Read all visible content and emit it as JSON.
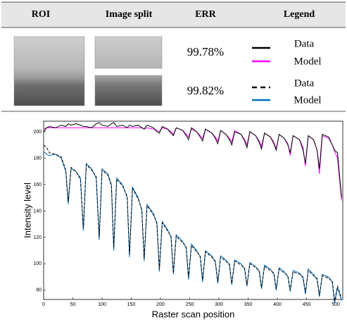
{
  "table": {
    "header": [
      "ROI",
      "Image split",
      "ERR",
      "Legend"
    ],
    "rows": [
      {
        "err": "99.78%",
        "legend": [
          {
            "label": "Data",
            "color": "#000000",
            "dash": false
          },
          {
            "label": "Model",
            "color": "#ff00ff",
            "dash": false
          }
        ]
      },
      {
        "err": "99.82%",
        "legend": [
          {
            "label": "Data",
            "color": "#000000",
            "dash": true
          },
          {
            "label": "Model",
            "color": "#0070c0",
            "dash": false
          }
        ]
      }
    ]
  },
  "chart_data": {
    "type": "line",
    "xlabel": "Raster scan position",
    "ylabel": "Intensity level",
    "xlim": [
      0,
      512
    ],
    "ylim": [
      73,
      208
    ],
    "xticks": [
      0,
      50,
      100,
      150,
      200,
      250,
      300,
      350,
      400,
      450,
      500
    ],
    "yticks": [
      80,
      100,
      120,
      140,
      160,
      180,
      200
    ],
    "x": [
      0,
      5,
      10,
      20,
      30,
      38,
      42,
      47,
      55,
      63,
      68,
      73,
      82,
      90,
      95,
      100,
      110,
      116,
      120,
      125,
      135,
      143,
      147,
      152,
      162,
      168,
      172,
      177,
      188,
      194,
      198,
      203,
      212,
      218,
      222,
      227,
      238,
      244,
      248,
      253,
      262,
      268,
      272,
      277,
      288,
      294,
      298,
      303,
      312,
      318,
      322,
      327,
      338,
      344,
      348,
      353,
      363,
      369,
      373,
      378,
      388,
      394,
      398,
      403,
      412,
      418,
      422,
      427,
      438,
      444,
      448,
      453,
      462,
      468,
      472,
      477,
      488,
      494,
      498,
      503,
      510
    ],
    "series": [
      {
        "color": "#000000",
        "dash": false,
        "values": [
          200,
          203,
          204,
          203,
          205,
          204,
          206,
          205,
          206,
          205,
          204,
          204,
          203,
          206,
          207,
          205,
          204,
          206,
          207,
          204,
          205,
          203,
          205,
          204,
          205,
          203,
          202,
          205,
          203,
          200,
          199,
          204,
          202,
          199,
          197,
          203,
          201,
          197,
          194,
          203,
          200,
          196,
          193,
          202,
          199,
          195,
          191,
          201,
          198,
          194,
          190,
          200,
          198,
          193,
          188,
          200,
          197,
          192,
          187,
          199,
          196,
          191,
          186,
          198,
          195,
          190,
          184,
          197,
          194,
          186,
          176,
          197,
          194,
          186,
          172,
          198,
          196,
          190,
          186,
          184,
          150
        ]
      },
      {
        "color": "#ff00ff",
        "dash": false,
        "values": [
          202,
          203,
          203,
          203,
          203,
          203,
          203,
          203,
          203,
          203,
          203,
          203,
          203,
          203,
          203,
          203,
          203,
          203,
          203,
          203,
          203,
          203,
          203,
          203,
          203,
          203,
          202,
          203,
          202,
          201,
          200,
          203,
          202,
          200,
          198,
          203,
          201,
          198,
          196,
          202,
          200,
          197,
          195,
          202,
          199,
          196,
          193,
          201,
          198,
          195,
          192,
          201,
          198,
          194,
          190,
          200,
          197,
          193,
          189,
          199,
          196,
          192,
          187,
          198,
          195,
          191,
          182,
          197,
          194,
          188,
          174,
          197,
          194,
          186,
          168,
          197,
          195,
          190,
          185,
          180,
          148
        ]
      },
      {
        "color": "#000000",
        "dash": true,
        "values": [
          190,
          188,
          184,
          183,
          181,
          171,
          147,
          173,
          170,
          164,
          127,
          175,
          171,
          166,
          120,
          171,
          167,
          159,
          112,
          164,
          159,
          151,
          107,
          157,
          149,
          141,
          104,
          144,
          137,
          131,
          96,
          131,
          125,
          121,
          93,
          121,
          116,
          113,
          90,
          114,
          109,
          106,
          88,
          109,
          105,
          102,
          86,
          105,
          102,
          100,
          85,
          102,
          99,
          97,
          84,
          100,
          97,
          95,
          82,
          98,
          95,
          93,
          81,
          96,
          93,
          91,
          80,
          94,
          92,
          90,
          78,
          95,
          91,
          89,
          76,
          91,
          89,
          87,
          72,
          83,
          74
        ]
      },
      {
        "color": "#0070c0",
        "dash": false,
        "values": [
          185,
          183,
          182,
          183,
          180,
          170,
          145,
          172,
          170,
          165,
          125,
          176,
          172,
          165,
          118,
          172,
          168,
          160,
          110,
          165,
          160,
          150,
          105,
          158,
          150,
          140,
          102,
          145,
          138,
          130,
          94,
          132,
          126,
          120,
          92,
          122,
          117,
          112,
          88,
          115,
          110,
          105,
          86,
          110,
          106,
          101,
          85,
          106,
          103,
          99,
          84,
          103,
          100,
          96,
          83,
          101,
          98,
          94,
          81,
          99,
          96,
          92,
          80,
          97,
          94,
          90,
          79,
          95,
          93,
          89,
          77,
          96,
          92,
          88,
          75,
          92,
          90,
          86,
          70,
          82,
          72
        ]
      }
    ]
  }
}
